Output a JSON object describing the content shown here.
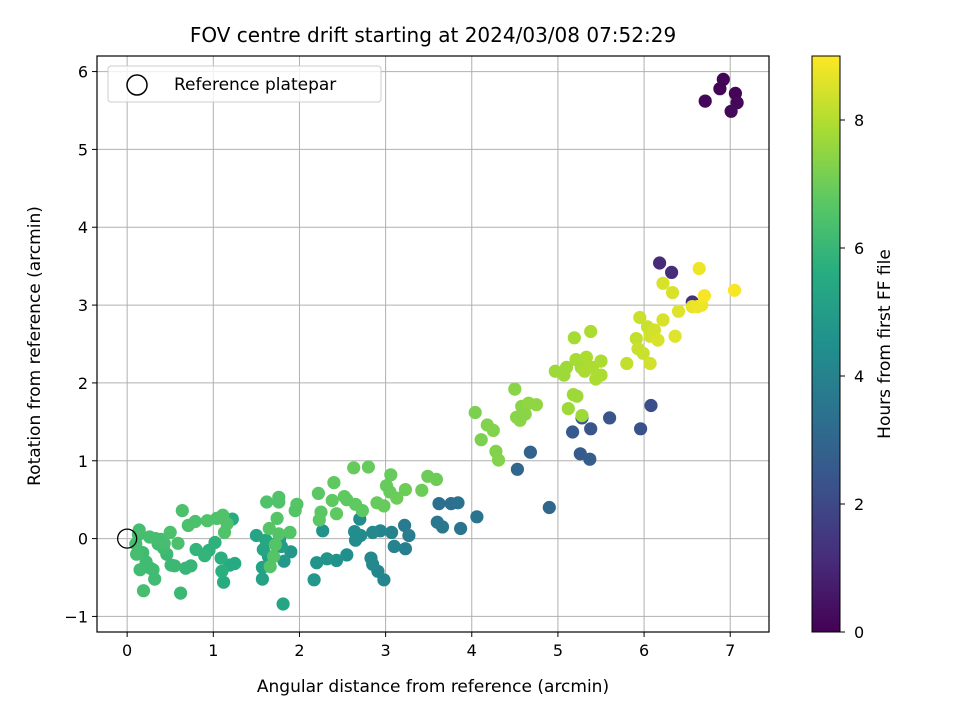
{
  "chart_data": {
    "type": "scatter",
    "title": "FOV centre drift starting at 2024/03/08 07:52:29",
    "xlabel": "Angular distance from reference (arcmin)",
    "ylabel": "Rotation from reference (arcmin)",
    "xlim": [
      -0.35,
      7.45
    ],
    "ylim": [
      -1.2,
      6.2
    ],
    "x_ticks": [
      0,
      1,
      2,
      3,
      4,
      5,
      6,
      7
    ],
    "y_ticks": [
      -1,
      0,
      1,
      2,
      3,
      4,
      5,
      6
    ],
    "grid": true,
    "legend": {
      "position": "top-left",
      "entries": [
        "Reference platepar"
      ]
    },
    "reference_point": {
      "x": 0,
      "y": 0
    },
    "colorbar": {
      "label": "Hours from first FF file",
      "colormap": "viridis",
      "range": [
        0,
        9
      ],
      "ticks": [
        0,
        2,
        4,
        6,
        8
      ]
    },
    "series": [
      {
        "points": [
          [
            6.92,
            5.9,
            0.1
          ],
          [
            6.88,
            5.78,
            0.1
          ],
          [
            7.06,
            5.72,
            0.1
          ],
          [
            6.71,
            5.62,
            0.15
          ],
          [
            7.08,
            5.6,
            0.15
          ],
          [
            7.01,
            5.49,
            0.2
          ],
          [
            6.18,
            3.54,
            1.1
          ],
          [
            6.32,
            3.42,
            1.2
          ],
          [
            6.56,
            3.04,
            1.3
          ],
          [
            6.08,
            1.71,
            2.2
          ],
          [
            5.96,
            1.41,
            2.3
          ],
          [
            5.6,
            1.55,
            2.4
          ],
          [
            5.28,
            1.55,
            2.5
          ],
          [
            5.38,
            1.41,
            2.4
          ],
          [
            5.17,
            1.37,
            2.6
          ],
          [
            5.26,
            1.09,
            2.6
          ],
          [
            5.37,
            1.02,
            2.7
          ],
          [
            4.9,
            0.4,
            3.0
          ],
          [
            4.68,
            1.11,
            2.9
          ],
          [
            4.53,
            0.89,
            3.0
          ],
          [
            3.62,
            0.45,
            3.3
          ],
          [
            3.76,
            0.45,
            3.3
          ],
          [
            3.84,
            0.46,
            3.4
          ],
          [
            4.06,
            0.28,
            3.5
          ],
          [
            3.87,
            0.13,
            3.5
          ],
          [
            3.6,
            0.21,
            3.6
          ],
          [
            3.66,
            0.15,
            3.6
          ],
          [
            3.22,
            0.17,
            3.7
          ],
          [
            3.27,
            0.04,
            3.8
          ],
          [
            3.23,
            -0.13,
            3.9
          ],
          [
            3.1,
            -0.1,
            4.0
          ],
          [
            2.98,
            -0.53,
            4.1
          ],
          [
            2.91,
            -0.42,
            4.1
          ],
          [
            2.83,
            -0.25,
            4.2
          ],
          [
            2.85,
            -0.33,
            4.2
          ],
          [
            3.07,
            0.08,
            4.0
          ],
          [
            2.94,
            0.1,
            4.1
          ],
          [
            2.85,
            0.08,
            4.2
          ],
          [
            2.7,
            0.25,
            4.3
          ],
          [
            2.71,
            0.04,
            4.3
          ],
          [
            2.64,
            0.09,
            4.4
          ],
          [
            2.55,
            -0.21,
            4.5
          ],
          [
            2.65,
            -0.02,
            4.4
          ],
          [
            2.43,
            -0.28,
            4.6
          ],
          [
            2.32,
            -0.26,
            4.7
          ],
          [
            2.2,
            -0.31,
            4.7
          ],
          [
            2.27,
            0.1,
            4.6
          ],
          [
            2.17,
            -0.53,
            4.8
          ],
          [
            1.9,
            -0.17,
            4.8
          ],
          [
            1.82,
            -0.29,
            4.9
          ],
          [
            1.77,
            -0.01,
            5.0
          ],
          [
            1.79,
            -0.1,
            5.0
          ],
          [
            1.73,
            -0.06,
            5.1
          ],
          [
            1.64,
            -0.23,
            5.1
          ],
          [
            1.57,
            -0.37,
            5.2
          ],
          [
            1.57,
            -0.52,
            5.2
          ],
          [
            1.5,
            0.04,
            5.3
          ],
          [
            1.58,
            -0.14,
            5.3
          ],
          [
            1.61,
            -0.02,
            5.4
          ],
          [
            1.81,
            -0.84,
            5.3
          ],
          [
            1.25,
            -0.32,
            5.5
          ],
          [
            1.19,
            -0.34,
            5.5
          ],
          [
            1.22,
            0.25,
            5.6
          ],
          [
            1.12,
            -0.56,
            5.6
          ],
          [
            1.1,
            -0.42,
            5.7
          ],
          [
            1.09,
            -0.25,
            5.7
          ],
          [
            1.02,
            -0.05,
            5.8
          ],
          [
            0.95,
            -0.15,
            5.8
          ],
          [
            0.9,
            -0.22,
            5.9
          ],
          [
            0.8,
            -0.14,
            5.9
          ],
          [
            0.74,
            -0.35,
            6.0
          ],
          [
            0.68,
            -0.38,
            6.0
          ],
          [
            0.62,
            -0.7,
            6.1
          ],
          [
            0.55,
            -0.35,
            6.1
          ],
          [
            0.51,
            -0.34,
            6.1
          ],
          [
            0.46,
            -0.2,
            6.1
          ],
          [
            0.42,
            -0.12,
            6.2
          ],
          [
            0.36,
            -0.07,
            6.2
          ],
          [
            0.3,
            -0.4,
            6.2
          ],
          [
            0.32,
            -0.52,
            6.2
          ],
          [
            0.27,
            -0.38,
            6.2
          ],
          [
            0.22,
            -0.3,
            6.2
          ],
          [
            0.18,
            -0.18,
            6.2
          ],
          [
            0.15,
            -0.4,
            6.2
          ],
          [
            0.19,
            -0.67,
            6.3
          ],
          [
            0.11,
            -0.2,
            6.3
          ],
          [
            0.1,
            -0.07,
            6.3
          ],
          [
            0.13,
            0.05,
            6.3
          ],
          [
            0.14,
            0.11,
            6.3
          ],
          [
            0.26,
            0.02,
            6.3
          ],
          [
            0.33,
            0.0,
            6.3
          ],
          [
            0.39,
            -0.01,
            6.3
          ],
          [
            0.43,
            -0.06,
            6.3
          ],
          [
            0.5,
            0.08,
            6.4
          ],
          [
            0.59,
            -0.06,
            6.4
          ],
          [
            0.64,
            0.36,
            6.4
          ],
          [
            0.71,
            0.17,
            6.4
          ],
          [
            0.79,
            0.22,
            6.4
          ],
          [
            0.93,
            0.23,
            6.5
          ],
          [
            1.04,
            0.26,
            6.5
          ],
          [
            1.11,
            0.3,
            6.5
          ],
          [
            1.16,
            0.19,
            6.5
          ],
          [
            1.13,
            0.08,
            6.5
          ],
          [
            1.62,
            0.47,
            6.5
          ],
          [
            1.76,
            0.53,
            6.5
          ],
          [
            1.76,
            0.47,
            6.5
          ],
          [
            1.97,
            0.44,
            6.6
          ],
          [
            1.95,
            0.36,
            6.6
          ],
          [
            1.74,
            0.26,
            6.6
          ],
          [
            1.65,
            0.13,
            6.6
          ],
          [
            1.76,
            0.06,
            6.6
          ],
          [
            1.89,
            0.08,
            6.6
          ],
          [
            1.72,
            -0.08,
            6.6
          ],
          [
            1.7,
            -0.23,
            6.6
          ],
          [
            1.66,
            -0.36,
            6.6
          ],
          [
            2.23,
            0.24,
            6.7
          ],
          [
            2.25,
            0.34,
            6.7
          ],
          [
            2.22,
            0.58,
            6.7
          ],
          [
            2.4,
            0.72,
            6.8
          ],
          [
            2.38,
            0.49,
            6.8
          ],
          [
            2.43,
            0.32,
            6.8
          ],
          [
            2.55,
            0.5,
            6.8
          ],
          [
            2.65,
            0.44,
            6.8
          ],
          [
            2.52,
            0.54,
            6.8
          ],
          [
            2.73,
            0.36,
            6.8
          ],
          [
            2.8,
            0.92,
            6.9
          ],
          [
            2.63,
            0.91,
            6.9
          ],
          [
            2.9,
            0.46,
            6.9
          ],
          [
            2.98,
            0.42,
            6.9
          ],
          [
            3.05,
            0.6,
            6.9
          ],
          [
            3.06,
            0.82,
            6.9
          ],
          [
            3.01,
            0.68,
            6.9
          ],
          [
            3.13,
            0.52,
            7.0
          ],
          [
            3.23,
            0.63,
            7.0
          ],
          [
            3.42,
            0.62,
            7.0
          ],
          [
            3.49,
            0.8,
            7.0
          ],
          [
            3.59,
            0.76,
            7.0
          ],
          [
            4.04,
            1.62,
            7.2
          ],
          [
            4.11,
            1.27,
            7.2
          ],
          [
            4.18,
            1.46,
            7.3
          ],
          [
            4.25,
            1.39,
            7.3
          ],
          [
            4.28,
            1.12,
            7.3
          ],
          [
            4.31,
            1.01,
            7.3
          ],
          [
            4.5,
            1.92,
            7.4
          ],
          [
            4.52,
            1.56,
            7.4
          ],
          [
            4.58,
            1.7,
            7.4
          ],
          [
            4.56,
            1.52,
            7.4
          ],
          [
            4.62,
            1.6,
            7.4
          ],
          [
            4.66,
            1.74,
            7.5
          ],
          [
            4.75,
            1.72,
            7.5
          ],
          [
            4.97,
            2.15,
            7.7
          ],
          [
            5.07,
            2.1,
            7.7
          ],
          [
            5.1,
            2.2,
            7.7
          ],
          [
            5.12,
            1.67,
            7.7
          ],
          [
            5.18,
            1.85,
            7.7
          ],
          [
            5.22,
            1.83,
            7.7
          ],
          [
            5.28,
            1.58,
            7.7
          ],
          [
            5.19,
            2.58,
            7.8
          ],
          [
            5.21,
            2.3,
            7.8
          ],
          [
            5.27,
            2.2,
            7.8
          ],
          [
            5.31,
            2.15,
            7.9
          ],
          [
            5.33,
            2.33,
            7.9
          ],
          [
            5.38,
            2.66,
            7.9
          ],
          [
            5.44,
            2.05,
            7.9
          ],
          [
            5.5,
            2.28,
            7.9
          ],
          [
            5.5,
            2.1,
            7.9
          ],
          [
            5.4,
            2.2,
            7.9
          ],
          [
            5.8,
            2.25,
            8.2
          ],
          [
            5.91,
            2.57,
            8.2
          ],
          [
            5.95,
            2.84,
            8.3
          ],
          [
            5.93,
            2.44,
            8.3
          ],
          [
            5.99,
            2.38,
            8.3
          ],
          [
            6.04,
            2.72,
            8.3
          ],
          [
            6.07,
            2.6,
            8.4
          ],
          [
            6.07,
            2.25,
            8.4
          ],
          [
            6.12,
            2.68,
            8.4
          ],
          [
            6.16,
            2.55,
            8.5
          ],
          [
            6.22,
            2.81,
            8.5
          ],
          [
            6.22,
            3.28,
            8.5
          ],
          [
            6.33,
            3.16,
            8.5
          ],
          [
            6.36,
            2.6,
            8.6
          ],
          [
            6.4,
            2.92,
            8.6
          ],
          [
            6.56,
            2.98,
            8.7
          ],
          [
            6.62,
            2.98,
            8.8
          ],
          [
            6.64,
            3.47,
            8.8
          ],
          [
            6.67,
            3.0,
            8.8
          ],
          [
            6.7,
            3.12,
            8.9
          ],
          [
            7.05,
            3.19,
            8.9
          ]
        ]
      }
    ]
  }
}
